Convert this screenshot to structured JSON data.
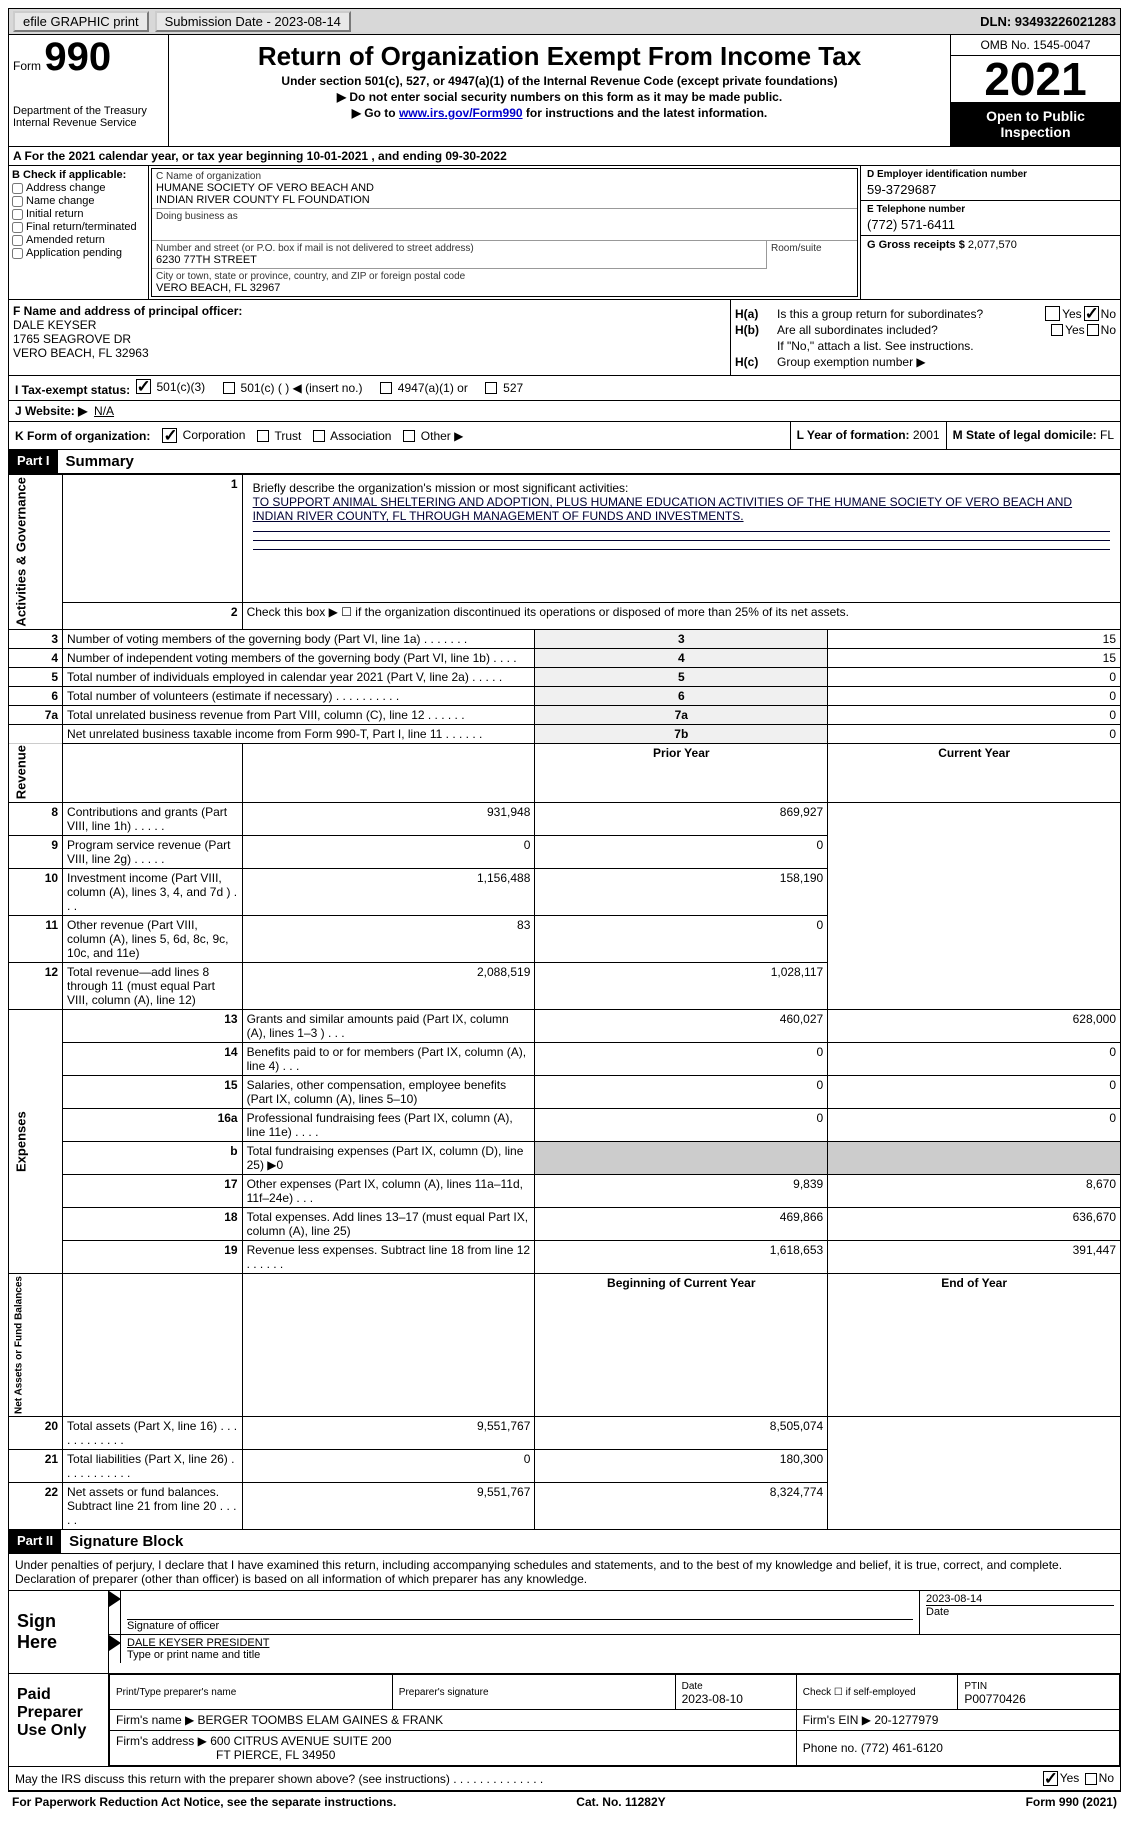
{
  "topbar": {
    "efile": "efile GRAPHIC print",
    "submission_label": "Submission Date - 2023-08-14",
    "dln": "DLN: 93493226021283"
  },
  "header": {
    "form_label": "Form",
    "form_num": "990",
    "dept": "Department of the Treasury Internal Revenue Service",
    "title": "Return of Organization Exempt From Income Tax",
    "sub": "Under section 501(c), 527, or 4947(a)(1) of the Internal Revenue Code (except private foundations)",
    "note1": "▶ Do not enter social security numbers on this form as it may be made public.",
    "note2_pre": "▶ Go to ",
    "note2_link": "www.irs.gov/Form990",
    "note2_post": " for instructions and the latest information.",
    "omb": "OMB No. 1545-0047",
    "year": "2021",
    "open": "Open to Public Inspection"
  },
  "row_a": "A For the 2021 calendar year, or tax year beginning 10-01-2021    , and ending 09-30-2022",
  "col_b": {
    "label": "B Check if applicable:",
    "items": [
      "Address change",
      "Name change",
      "Initial return",
      "Final return/terminated",
      "Amended return",
      "Application pending"
    ]
  },
  "block_c": {
    "name_label": "C Name of organization",
    "name1": "HUMANE SOCIETY OF VERO BEACH AND",
    "name2": "INDIAN RIVER COUNTY FL FOUNDATION",
    "dba_label": "Doing business as",
    "addr_label": "Number and street (or P.O. box if mail is not delivered to street address)",
    "addr": "6230 77TH STREET",
    "room_label": "Room/suite",
    "city_label": "City or town, state or province, country, and ZIP or foreign postal code",
    "city": "VERO BEACH, FL  32967"
  },
  "block_de": {
    "d_label": "D Employer identification number",
    "d_val": "59-3729687",
    "e_label": "E Telephone number",
    "e_val": "(772) 571-6411",
    "g_label": "G Gross receipts $",
    "g_val": "2,077,570"
  },
  "block_f": {
    "label": "F  Name and address of principal officer:",
    "name": "DALE KEYSER",
    "addr1": "1765 SEAGROVE DR",
    "addr2": "VERO BEACH, FL  32963"
  },
  "block_h": {
    "ha_label": "H(a)",
    "ha_text": "Is this a group return for subordinates?",
    "hb_label": "H(b)",
    "hb_text": "Are all subordinates included?",
    "hb_note": "If \"No,\" attach a list. See instructions.",
    "hc_label": "H(c)",
    "hc_text": "Group exemption number ▶",
    "yes": "Yes",
    "no": "No"
  },
  "row_i": {
    "label": "I  Tax-exempt status:",
    "opt1": "501(c)(3)",
    "opt2": "501(c) (  ) ◀ (insert no.)",
    "opt3": "4947(a)(1) or",
    "opt4": "527"
  },
  "row_j": {
    "label": "J  Website: ▶",
    "val": "N/A"
  },
  "row_k": {
    "label": "K Form of organization:",
    "opts": [
      "Corporation",
      "Trust",
      "Association",
      "Other ▶"
    ]
  },
  "row_l": {
    "label": "L Year of formation:",
    "val": "2001"
  },
  "row_m": {
    "label": "M State of legal domicile:",
    "val": "FL"
  },
  "part1": {
    "hdr": "Part I",
    "title": "Summary",
    "line1_label": "Briefly describe the organization's mission or most significant activities:",
    "line1_text": "TO SUPPORT ANIMAL SHELTERING AND ADOPTION, PLUS HUMANE EDUCATION ACTIVITIES OF THE HUMANE SOCIETY OF VERO BEACH AND INDIAN RIVER COUNTY, FL THROUGH MANAGEMENT OF FUNDS AND INVESTMENTS.",
    "line2": "Check this box ▶ ☐  if the organization discontinued its operations or disposed of more than 25% of its net assets.",
    "side_act": "Activities & Governance",
    "side_rev": "Revenue",
    "side_exp": "Expenses",
    "side_net": "Net Assets or Fund Balances",
    "lines_gov": [
      {
        "n": "3",
        "d": "Number of voting members of the governing body (Part VI, line 1a)  .    .    .    .    .    .    .",
        "b": "3",
        "v": "15"
      },
      {
        "n": "4",
        "d": "Number of independent voting members of the governing body (Part VI, line 1b)  .    .    .    .",
        "b": "4",
        "v": "15"
      },
      {
        "n": "5",
        "d": "Total number of individuals employed in calendar year 2021 (Part V, line 2a)  .    .    .    .    .",
        "b": "5",
        "v": "0"
      },
      {
        "n": "6",
        "d": "Total number of volunteers (estimate if necessary)    .    .    .    .    .    .    .    .    .    .",
        "b": "6",
        "v": "0"
      },
      {
        "n": "7a",
        "d": "Total unrelated business revenue from Part VIII, column (C), line 12   .    .    .    .    .    .",
        "b": "7a",
        "v": "0"
      },
      {
        "n": "",
        "d": "Net unrelated business taxable income from Form 990-T, Part I, line 11  .    .    .    .    .    .",
        "b": "7b",
        "v": "0"
      }
    ],
    "col_prior": "Prior Year",
    "col_current": "Current Year",
    "lines_rev": [
      {
        "n": "8",
        "d": "Contributions and grants (Part VIII, line 1h)   .    .    .    .    .",
        "p": "931,948",
        "c": "869,927"
      },
      {
        "n": "9",
        "d": "Program service revenue (Part VIII, line 2g)   .    .    .    .    .",
        "p": "0",
        "c": "0"
      },
      {
        "n": "10",
        "d": "Investment income (Part VIII, column (A), lines 3, 4, and 7d )   .    .    .",
        "p": "1,156,488",
        "c": "158,190"
      },
      {
        "n": "11",
        "d": "Other revenue (Part VIII, column (A), lines 5, 6d, 8c, 9c, 10c, and 11e)",
        "p": "83",
        "c": "0"
      },
      {
        "n": "12",
        "d": "Total revenue—add lines 8 through 11 (must equal Part VIII, column (A), line 12)",
        "p": "2,088,519",
        "c": "1,028,117"
      }
    ],
    "lines_exp": [
      {
        "n": "13",
        "d": "Grants and similar amounts paid (Part IX, column (A), lines 1–3 )  .    .    .",
        "p": "460,027",
        "c": "628,000"
      },
      {
        "n": "14",
        "d": "Benefits paid to or for members (Part IX, column (A), line 4)   .    .    .",
        "p": "0",
        "c": "0"
      },
      {
        "n": "15",
        "d": "Salaries, other compensation, employee benefits (Part IX, column (A), lines 5–10)",
        "p": "0",
        "c": "0"
      },
      {
        "n": "16a",
        "d": "Professional fundraising fees (Part IX, column (A), line 11e)  .    .    .    .",
        "p": "0",
        "c": "0"
      },
      {
        "n": "b",
        "d": "Total fundraising expenses (Part IX, column (D), line 25) ▶0",
        "p": "",
        "c": "",
        "shaded": true
      },
      {
        "n": "17",
        "d": "Other expenses (Part IX, column (A), lines 11a–11d, 11f–24e)   .    .    .",
        "p": "9,839",
        "c": "8,670"
      },
      {
        "n": "18",
        "d": "Total expenses. Add lines 13–17 (must equal Part IX, column (A), line 25)",
        "p": "469,866",
        "c": "636,670"
      },
      {
        "n": "19",
        "d": "Revenue less expenses. Subtract line 18 from line 12  .    .    .    .    .    .",
        "p": "1,618,653",
        "c": "391,447"
      }
    ],
    "col_begin": "Beginning of Current Year",
    "col_end": "End of Year",
    "lines_net": [
      {
        "n": "20",
        "d": "Total assets (Part X, line 16)  .    .    .    .    .    .    .    .    .    .    .    .",
        "p": "9,551,767",
        "c": "8,505,074"
      },
      {
        "n": "21",
        "d": "Total liabilities (Part X, line 26)  .    .    .    .    .    .    .    .    .    .    .",
        "p": "0",
        "c": "180,300"
      },
      {
        "n": "22",
        "d": "Net assets or fund balances. Subtract line 21 from line 20   .    .    .    .    .",
        "p": "9,551,767",
        "c": "8,324,774"
      }
    ]
  },
  "part2": {
    "hdr": "Part II",
    "title": "Signature Block",
    "decl": "Under penalties of perjury, I declare that I have examined this return, including accompanying schedules and statements, and to the best of my knowledge and belief, it is true, correct, and complete. Declaration of preparer (other than officer) is based on all information of which preparer has any knowledge.",
    "sign_here": "Sign Here",
    "sig_officer_label": "Signature of officer",
    "sig_date": "2023-08-14",
    "date_label": "Date",
    "officer_name": "DALE KEYSER  PRESIDENT",
    "officer_label": "Type or print name and title",
    "paid": "Paid Preparer Use Only",
    "prep_name_label": "Print/Type preparer's name",
    "prep_sig_label": "Preparer's signature",
    "prep_date_label": "Date",
    "prep_date": "2023-08-10",
    "check_self": "Check ☐ if self-employed",
    "ptin_label": "PTIN",
    "ptin": "P00770426",
    "firm_name_label": "Firm's name    ▶",
    "firm_name": "BERGER TOOMBS ELAM GAINES & FRANK",
    "firm_ein_label": "Firm's EIN ▶",
    "firm_ein": "20-1277979",
    "firm_addr_label": "Firm's address ▶",
    "firm_addr1": "600 CITRUS AVENUE SUITE 200",
    "firm_addr2": "FT PIERCE, FL  34950",
    "phone_label": "Phone no.",
    "phone": "(772) 461-6120",
    "discuss": "May the IRS discuss this return with the preparer shown above? (see instructions)   .    .    .    .    .    .    .    .    .    .    .    .    .    ."
  },
  "footer": {
    "left": "For Paperwork Reduction Act Notice, see the separate instructions.",
    "mid": "Cat. No. 11282Y",
    "right": "Form 990 (2021)"
  }
}
